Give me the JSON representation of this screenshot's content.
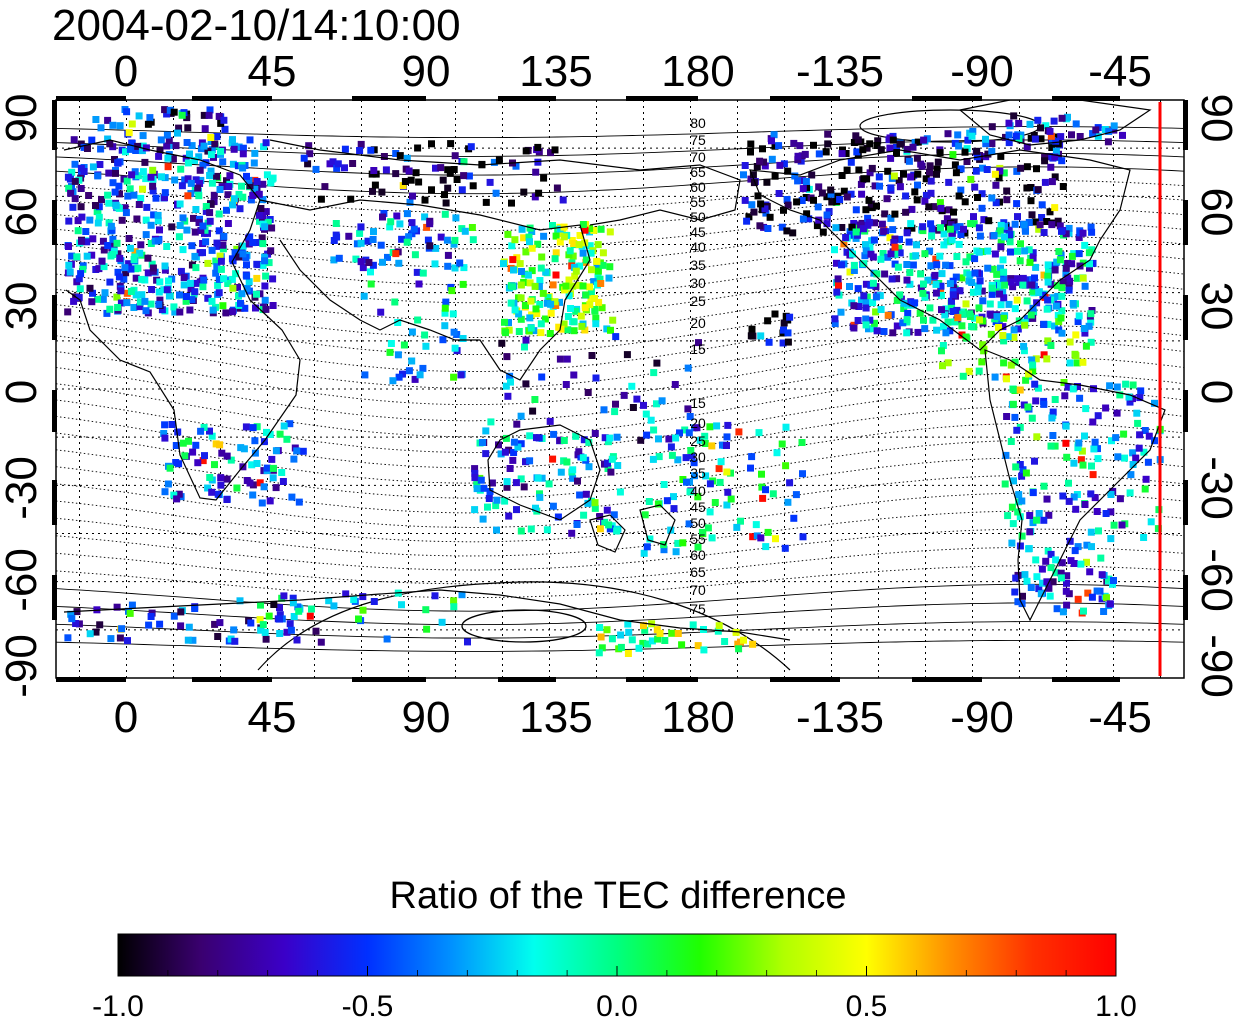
{
  "timestamp": "2004-02-10/14:10:00",
  "map": {
    "lon_ticks": [
      "0",
      "45",
      "90",
      "135",
      "180",
      "-135",
      "-90",
      "-45"
    ],
    "lat_ticks_left": [
      "90",
      "60",
      "30",
      "0",
      "-30",
      "-60",
      "-90"
    ],
    "lat_ticks_right": [
      "90",
      "60",
      "30",
      "0",
      "-30",
      "-60",
      "-90"
    ],
    "contour_labels_north": [
      "80",
      "75",
      "70",
      "65",
      "60",
      "55",
      "50",
      "45",
      "40",
      "35",
      "30",
      "25",
      "20",
      "15"
    ],
    "contour_labels_south": [
      "15",
      "20",
      "25",
      "30",
      "35",
      "40",
      "45",
      "50",
      "55",
      "60",
      "65",
      "70",
      "75"
    ],
    "terminator_color": "#ff0000",
    "coastline_color": "#000000",
    "grid_style": "dotted"
  },
  "colorbar": {
    "title": "Ratio of the TEC difference",
    "tick_labels": [
      "-1.0",
      "-0.5",
      "0.0",
      "0.5",
      "1.0"
    ],
    "range": [
      -1.0,
      1.0
    ],
    "colormap": [
      "#000000",
      "#3a0070",
      "#3b00c8",
      "#0030ff",
      "#0090ff",
      "#00ffee",
      "#00ff80",
      "#20ff00",
      "#b0ff00",
      "#ffff00",
      "#ff9000",
      "#ff3000",
      "#ff0000"
    ]
  }
}
